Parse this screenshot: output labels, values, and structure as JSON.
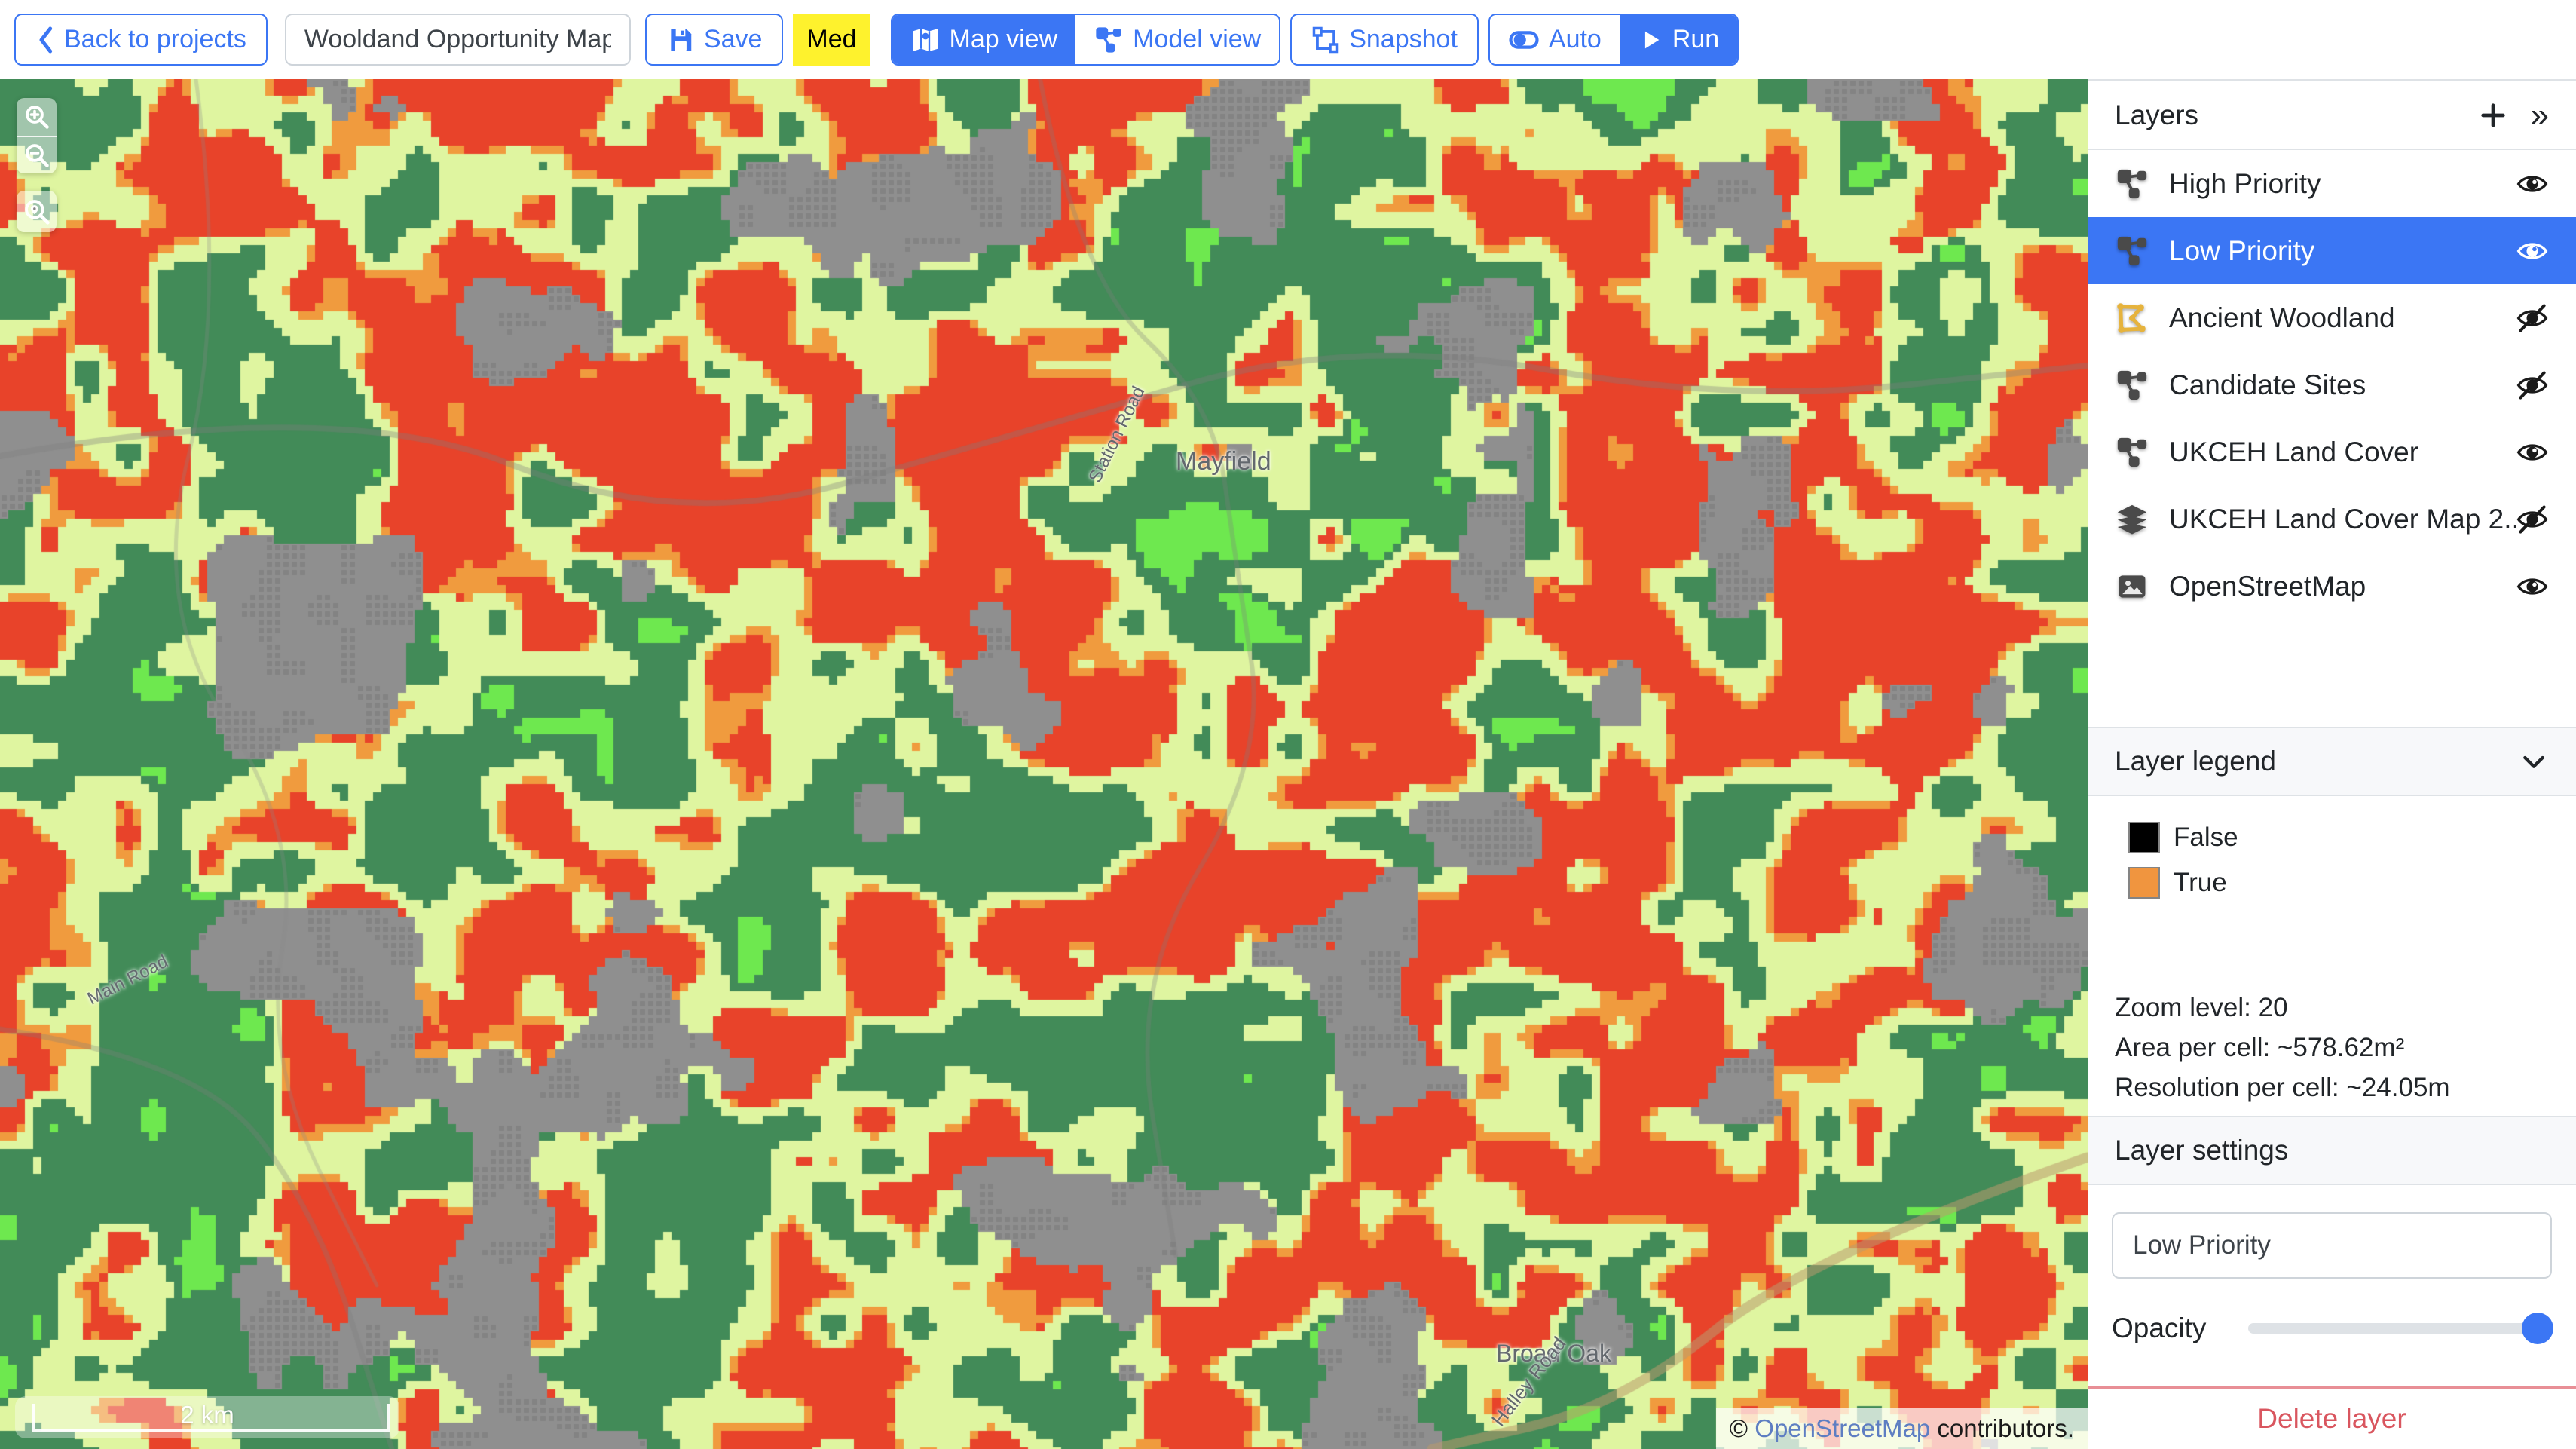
{
  "toolbar": {
    "back_label": "Back to projects",
    "title_value": "Wooldand Opportunity Map",
    "save_label": "Save",
    "med_label": "Med",
    "map_view_label": "Map view",
    "model_view_label": "Model view",
    "snapshot_label": "Snapshot",
    "auto_label": "Auto",
    "run_label": "Run"
  },
  "icons": {
    "plus": "+",
    "collapse": "»",
    "back_chevron": "‹"
  },
  "map": {
    "scale_label": "2 km",
    "attribution": {
      "prefix": "© ",
      "link": "OpenStreetMap",
      "suffix": " contributors."
    },
    "labels": [
      {
        "text": "Mayfield"
      },
      {
        "text": "Station Road"
      },
      {
        "text": "Main Road"
      },
      {
        "text": "Broad Oak"
      },
      {
        "text": "Halley Road"
      }
    ],
    "palette": {
      "red": "#e8432a",
      "orange": "#f09b3e",
      "pale_green": "#dff5a0",
      "dark_green": "#428b58",
      "bright_green": "#6ee84f",
      "urban_gray": "#8f8f8f"
    }
  },
  "layers_panel": {
    "title": "Layers",
    "items": [
      {
        "label": "High Priority",
        "icon": "model-icon",
        "visible": true,
        "selected": false
      },
      {
        "label": "Low Priority",
        "icon": "model-icon",
        "visible": true,
        "selected": true
      },
      {
        "label": "Ancient Woodland",
        "icon": "polygon-icon",
        "visible": false,
        "selected": false
      },
      {
        "label": "Candidate Sites",
        "icon": "model-icon",
        "visible": false,
        "selected": false
      },
      {
        "label": "UKCEH Land Cover",
        "icon": "model-icon",
        "visible": true,
        "selected": false
      },
      {
        "label": "UKCEH Land Cover Map 2...",
        "icon": "layers-stack-icon",
        "visible": false,
        "selected": false
      },
      {
        "label": "OpenStreetMap",
        "icon": "image-icon",
        "visible": true,
        "selected": false
      }
    ]
  },
  "legend": {
    "title": "Layer legend",
    "items": [
      {
        "label": "False",
        "color": "#000000"
      },
      {
        "label": "True",
        "color": "#f0953f"
      }
    ],
    "stats": [
      "Zoom level: 20",
      "Area per cell: ~578.62m²",
      "Resolution per cell: ~24.05m"
    ]
  },
  "settings": {
    "title": "Layer settings",
    "name_value": "Low Priority",
    "opacity_label": "Opacity",
    "opacity_percent": 100,
    "delete_label": "Delete layer"
  },
  "colors": {
    "accent": "#3b76f4",
    "med_badge_bg": "#fef22d",
    "danger": "#d9565f",
    "legend_false": "#000000",
    "legend_true": "#f0953f"
  }
}
